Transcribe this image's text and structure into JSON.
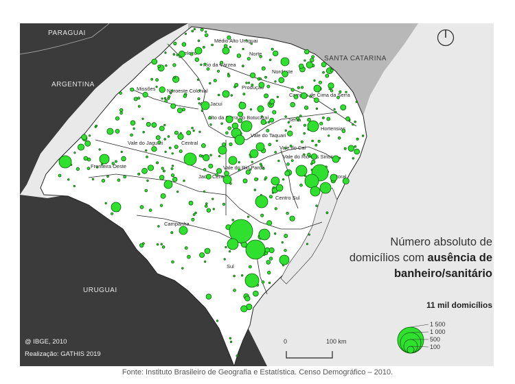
{
  "countries": {
    "paraguay": "PARAGUAI",
    "argentina": "ARGENTINA",
    "santa_catarina": "SANTA CATARINA",
    "uruguay": "URUGUAI"
  },
  "regions": [
    "Médio Alto Uruguai",
    "Celeiro",
    "Rio da Várzea",
    "Norte",
    "Nordeste",
    "Missões",
    "Noroeste Colonial",
    "Produção",
    "Campos de Cima da Serra",
    "Alto Jacuí",
    "Alto da Serra do Botucaraí",
    "Serra",
    "Hortensias",
    "Vale do Taquari",
    "Vale do Jaguari",
    "Central",
    "Vale do Caí",
    "Vale do Rio dos Sinos",
    "Fronteira Oeste",
    "Vale do Rio Pardo",
    "Jacuí Centro",
    "Litoral",
    "Centro Sul",
    "Campanha",
    "Sul"
  ],
  "legend": {
    "title_line1": "Número absoluto de",
    "title_line2_plain": "domicílios com ",
    "title_line2_bold": "ausência de",
    "title_line3": "banheiro/sanitário",
    "unit": "11 mil domicílios",
    "values": [
      "1 500",
      "1 000",
      "500",
      "100"
    ]
  },
  "credits": {
    "line1": "@ IBGE, 2010",
    "line2": "Realização: GATHIS 2019"
  },
  "scale": {
    "zero": "0",
    "length": "100 km"
  },
  "source": "Fonte: Instituto Brasileiro de Geografia e Estatística. Censo Demográfico – 2010.",
  "colors": {
    "circle_fill": "#2fe02f",
    "circle_stroke": "#0b5e0b",
    "dark_land": "#3b3b3b",
    "neighbor_land": "#b8b8b8",
    "sea": "#e9e9e9",
    "state_land": "#ffffff"
  },
  "icons": {
    "north": "north-arrow-icon"
  }
}
